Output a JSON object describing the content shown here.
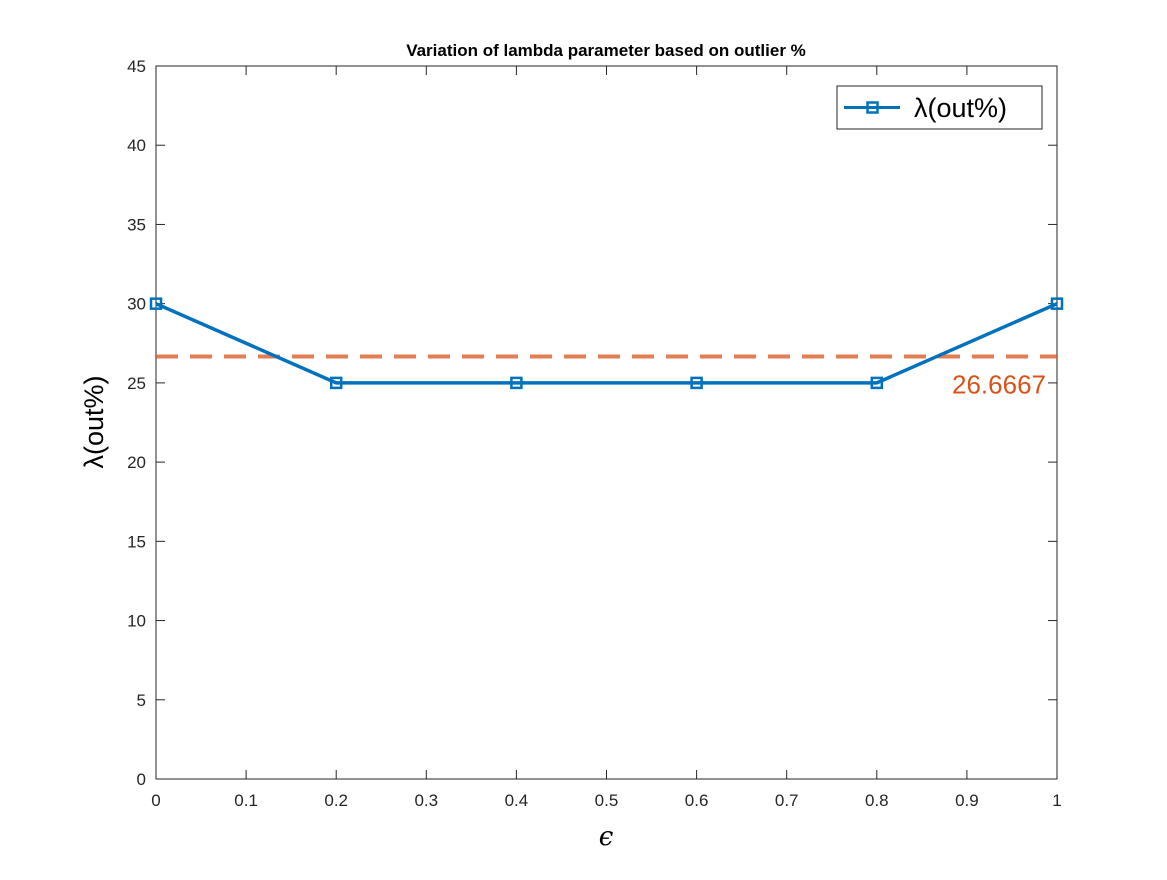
{
  "chart_data": {
    "type": "line",
    "title": "Variation of lambda parameter based on outlier %",
    "xlabel": "ϵ",
    "ylabel": "λ(out%)",
    "xlim": [
      0,
      1
    ],
    "ylim": [
      0,
      45
    ],
    "x_ticks": [
      0,
      0.1,
      0.2,
      0.3,
      0.4,
      0.5,
      0.6,
      0.7,
      0.8,
      0.9,
      1
    ],
    "x_tick_labels": [
      "0",
      "0.1",
      "0.2",
      "0.3",
      "0.4",
      "0.5",
      "0.6",
      "0.7",
      "0.8",
      "0.9",
      "1"
    ],
    "y_ticks": [
      0,
      5,
      10,
      15,
      20,
      25,
      30,
      35,
      40,
      45
    ],
    "y_tick_labels": [
      "0",
      "5",
      "10",
      "15",
      "20",
      "25",
      "30",
      "35",
      "40",
      "45"
    ],
    "grid": false,
    "legend_position": "top-right",
    "series": [
      {
        "name": "λ(out%)",
        "x": [
          0,
          0.2,
          0.4,
          0.6,
          0.8,
          1
        ],
        "y": [
          30,
          25,
          25,
          25,
          25,
          30
        ],
        "color": "#0072BD",
        "marker": "square"
      }
    ],
    "reference_line": {
      "y": 26.6667,
      "label": "26.6667",
      "color": "#D95319",
      "style": "dashed"
    }
  }
}
